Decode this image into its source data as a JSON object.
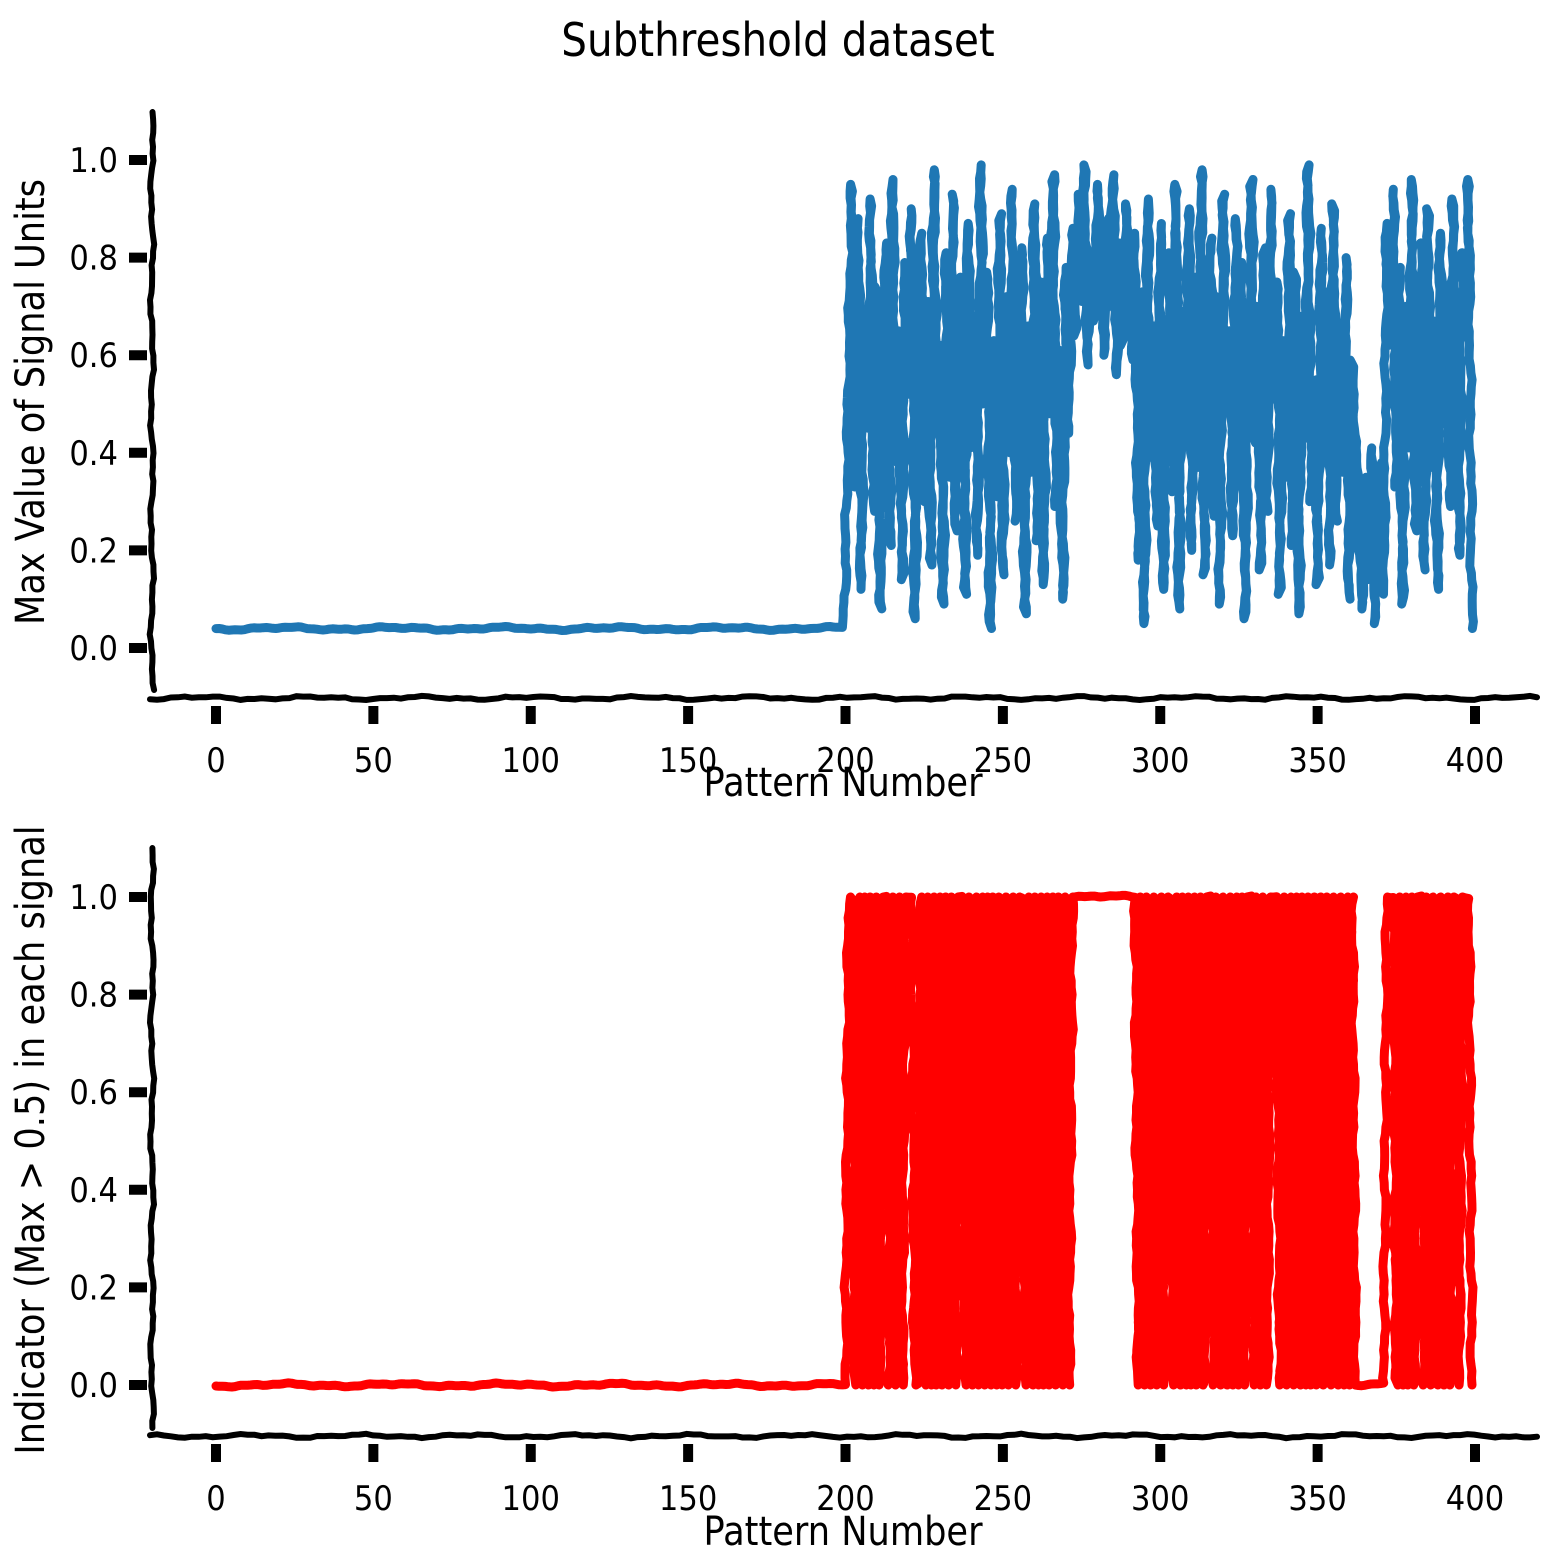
{
  "figure_title": "Subthreshold dataset",
  "style": {
    "background": "#ffffff",
    "axis_color": "#000000",
    "sketch_style": "xkcd",
    "top_line_color": "#1f77b4",
    "bottom_line_color": "#ff0000"
  },
  "chart_data": [
    {
      "id": "max_signal",
      "type": "line",
      "title": "Subthreshold dataset",
      "xlabel": "Pattern Number",
      "ylabel": "Max Value of Signal Units",
      "color": "#1f77b4",
      "legend": "none",
      "grid": false,
      "xlim": [
        -20,
        420
      ],
      "ylim": [
        -0.09,
        1.1
      ],
      "xtick_values": [
        0,
        50,
        100,
        150,
        200,
        250,
        300,
        350,
        400
      ],
      "xtick_labels": [
        "0",
        "50",
        "100",
        "150",
        "200",
        "250",
        "300",
        "350",
        "400"
      ],
      "ytick_values": [
        0.0,
        0.2,
        0.4,
        0.6,
        0.8,
        1.0
      ],
      "ytick_labels": [
        "0.0",
        "0.2",
        "0.4",
        "0.6",
        "0.8",
        "1.0"
      ],
      "x_start": 0,
      "x_step": 1,
      "n_points": 400,
      "baseline": {
        "value": 0.04,
        "count": 200
      },
      "active_values": [
        0.16,
        0.57,
        0.95,
        0.33,
        0.88,
        0.12,
        0.67,
        0.45,
        0.92,
        0.28,
        0.74,
        0.08,
        0.59,
        0.83,
        0.21,
        0.96,
        0.38,
        0.65,
        0.14,
        0.79,
        0.52,
        0.9,
        0.06,
        0.43,
        0.85,
        0.3,
        0.71,
        0.17,
        0.98,
        0.47,
        0.62,
        0.09,
        0.81,
        0.35,
        0.93,
        0.24,
        0.56,
        0.76,
        0.11,
        0.87,
        0.41,
        0.68,
        0.19,
        0.99,
        0.5,
        0.77,
        0.04,
        0.63,
        0.31,
        0.89,
        0.15,
        0.72,
        0.4,
        0.94,
        0.26,
        0.58,
        0.82,
        0.07,
        0.66,
        0.36,
        0.91,
        0.22,
        0.75,
        0.13,
        0.84,
        0.48,
        0.97,
        0.29,
        0.61,
        0.1,
        0.78,
        0.44,
        0.86,
        0.64,
        0.93,
        0.71,
        0.99,
        0.58,
        0.8,
        0.67,
        0.95,
        0.74,
        0.6,
        0.88,
        0.7,
        0.97,
        0.56,
        0.83,
        0.62,
        0.91,
        0.76,
        0.59,
        0.85,
        0.18,
        0.73,
        0.05,
        0.92,
        0.39,
        0.66,
        0.25,
        0.87,
        0.12,
        0.54,
        0.81,
        0.32,
        0.95,
        0.08,
        0.69,
        0.46,
        0.9,
        0.2,
        0.76,
        0.37,
        0.98,
        0.15,
        0.6,
        0.84,
        0.27,
        0.72,
        0.09,
        0.93,
        0.49,
        0.65,
        0.23,
        0.88,
        0.34,
        0.79,
        0.06,
        0.57,
        0.96,
        0.42,
        0.7,
        0.16,
        0.82,
        0.28,
        0.94,
        0.51,
        0.75,
        0.11,
        0.63,
        0.35,
        0.89,
        0.21,
        0.77,
        0.07,
        0.68,
        0.43,
        0.99,
        0.3,
        0.55,
        0.13,
        0.86,
        0.4,
        0.73,
        0.17,
        0.91,
        0.26,
        0.64,
        0.36,
        0.8,
        0.1,
        0.59,
        0.45,
        0.22,
        0.08,
        0.35,
        0.14,
        0.41,
        0.05,
        0.28,
        0.38,
        0.11,
        0.87,
        0.62,
        0.94,
        0.33,
        0.78,
        0.09,
        0.7,
        0.41,
        0.96,
        0.24,
        0.58,
        0.83,
        0.16,
        0.9,
        0.37,
        0.67,
        0.12,
        0.85,
        0.48,
        0.74,
        0.29,
        0.92,
        0.55,
        0.19,
        0.81,
        0.64,
        0.96,
        0.04
      ]
    },
    {
      "id": "indicator",
      "type": "line",
      "title": "",
      "xlabel": "Pattern Number",
      "ylabel": "Indicator (Max > 0.5) in each signal",
      "color": "#ff0000",
      "legend": "none",
      "grid": false,
      "xlim": [
        -20,
        420
      ],
      "ylim": [
        -0.09,
        1.1
      ],
      "xtick_values": [
        0,
        50,
        100,
        150,
        200,
        250,
        300,
        350,
        400
      ],
      "xtick_labels": [
        "0",
        "50",
        "100",
        "150",
        "200",
        "250",
        "300",
        "350",
        "400"
      ],
      "ytick_values": [
        0.0,
        0.2,
        0.4,
        0.6,
        0.8,
        1.0
      ],
      "ytick_labels": [
        "0.0",
        "0.2",
        "0.4",
        "0.6",
        "0.8",
        "1.0"
      ],
      "derived_from": "max_signal",
      "threshold": 0.5,
      "threshold_rule": "1 if max value > 0.5 else 0"
    }
  ]
}
